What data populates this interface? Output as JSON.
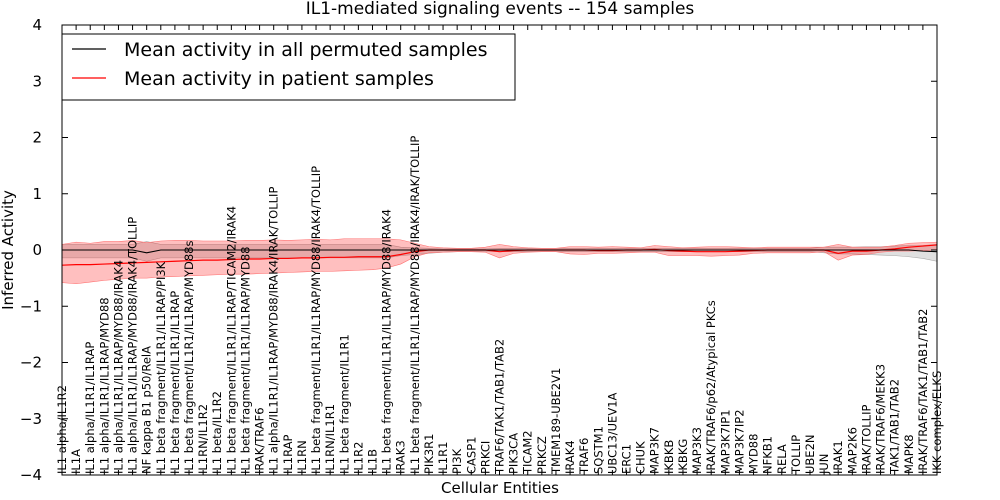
{
  "chart_data": {
    "type": "line",
    "title": "IL1-mediated signaling events -- 154 samples",
    "xlabel": "Cellular Entities",
    "ylabel": "Inferred Activity",
    "ylim": [
      -4,
      4
    ],
    "yticks": [
      -4,
      -3,
      -2,
      -1,
      0,
      1,
      2,
      3,
      4
    ],
    "ytick_labels": [
      "−4",
      "−3",
      "−2",
      "−1",
      "0",
      "1",
      "2",
      "3",
      "4"
    ],
    "grid": false,
    "legend_position": "top-left",
    "categories": [
      "IL1 alpha/IL1R2",
      "IL1A",
      "IL1 alpha/IL1R1/IL1RAP",
      "IL1 alpha/IL1R1/IL1RAP/MYD88",
      "IL1 alpha/IL1R1/IL1RAP/MYD88/IRAK4",
      "IL1 alpha/IL1R1/IL1RAP/MYD88/IRAK4/TOLLIP",
      "NF kappa B1 p50/RelA",
      "IL1 beta fragment/IL1R1/IL1RAP/PI3K",
      "IL1 beta fragment/IL1R1/IL1RAP",
      "IL1 beta fragment/IL1R1/IL1RAP/MYD88s",
      "IL1RN/IL1R2",
      "IL1 beta/IL1R2",
      "IL1 beta fragment/IL1R1/IL1RAP/TICAM2/IRAK4",
      "IL1 beta fragment/IL1R1/IL1RAP/MYD88",
      "IRAK/TRAF6",
      "IL1 alpha/IL1R1/IL1RAP/MYD88/IRAK4/IRAK/TOLLIP",
      "IL1RAP",
      "IL1RN",
      "IL1 beta fragment/IL1R1/IL1RAP/MYD88/IRAK4/TOLLIP",
      "IL1RN/IL1R1",
      "IL1 beta fragment/IL1R1",
      "IL1R2",
      "IL1B",
      "IL1 beta fragment/IL1R1/IL1RAP/MYD88/IRAK4",
      "IRAK3",
      "IL1 beta fragment/IL1R1/IL1RAP/MYD88/IRAK4/IRAK/TOLLIP",
      "PIK3R1",
      "IL1R1",
      "PI3K",
      "CASP1",
      "PRKCI",
      "TRAF6/TAK1/TAB1/TAB2",
      "PIK3CA",
      "TICAM2",
      "PRKCZ",
      "TMEM189-UBE2V1",
      "IRAK4",
      "TRAF6",
      "SQSTM1",
      "UBC13/UEV1A",
      "ERC1",
      "CHUK",
      "MAP3K7",
      "IKBKB",
      "IKBKG",
      "MAP3K3",
      "IRAK/TRAF6/p62/Atypical PKCs",
      "MAP3K7IP1",
      "MAP3K7IP2",
      "MYD88",
      "NFKB1",
      "RELA",
      "TOLLIP",
      "UBE2N",
      "JUN",
      "IRAK1",
      "MAP2K6",
      "IRAK/TOLLIP",
      "IRAK/TRAF6/MEKK3",
      "TAK1/TAB1/TAB2",
      "MAPK8",
      "IRAK/TRAF6/TAK1/TAB1/TAB2",
      "IKK complex/ELKS"
    ],
    "series": [
      {
        "name": "Mean activity in all permuted samples",
        "color": "#000000",
        "values": [
          0,
          0,
          0,
          0,
          0,
          0,
          -0.05,
          0,
          0,
          0,
          0,
          0,
          0,
          0,
          0,
          0,
          0,
          0,
          0,
          0,
          0,
          0,
          0,
          0,
          0,
          0,
          0,
          0,
          0,
          0,
          0,
          0,
          0,
          0,
          0,
          0,
          0,
          0,
          0,
          0,
          0,
          0,
          0,
          0,
          0,
          0,
          0,
          0,
          0,
          0,
          0,
          0,
          0,
          0,
          0,
          0,
          0,
          0,
          0,
          0,
          0,
          -0.02,
          -0.03
        ],
        "band": [
          [
            -0.14,
            0.1
          ],
          [
            -0.14,
            0.1
          ],
          [
            -0.14,
            0.1
          ],
          [
            -0.14,
            0.1
          ],
          [
            -0.14,
            0.1
          ],
          [
            -0.14,
            0.1
          ],
          [
            -0.2,
            0.15
          ],
          [
            -0.14,
            0.1
          ],
          [
            -0.14,
            0.1
          ],
          [
            -0.14,
            0.1
          ],
          [
            -0.14,
            0.1
          ],
          [
            -0.14,
            0.1
          ],
          [
            -0.14,
            0.1
          ],
          [
            -0.14,
            0.1
          ],
          [
            -0.14,
            0.1
          ],
          [
            -0.14,
            0.1
          ],
          [
            -0.14,
            0.1
          ],
          [
            -0.14,
            0.1
          ],
          [
            -0.14,
            0.1
          ],
          [
            -0.14,
            0.1
          ],
          [
            -0.14,
            0.1
          ],
          [
            -0.14,
            0.1
          ],
          [
            -0.14,
            0.1
          ],
          [
            -0.14,
            0.1
          ],
          [
            -0.1,
            0.05
          ],
          [
            -0.08,
            0.04
          ],
          [
            -0.06,
            0.03
          ],
          [
            -0.04,
            0.02
          ],
          [
            -0.03,
            0.02
          ],
          [
            -0.03,
            0.02
          ],
          [
            -0.02,
            0.02
          ],
          [
            -0.03,
            0.03
          ],
          [
            -0.03,
            0.03
          ],
          [
            -0.03,
            0.03
          ],
          [
            -0.03,
            0.03
          ],
          [
            -0.03,
            0.03
          ],
          [
            -0.03,
            0.03
          ],
          [
            -0.03,
            0.03
          ],
          [
            -0.03,
            0.03
          ],
          [
            -0.03,
            0.03
          ],
          [
            -0.03,
            0.03
          ],
          [
            -0.03,
            0.03
          ],
          [
            -0.03,
            0.03
          ],
          [
            -0.03,
            0.03
          ],
          [
            -0.03,
            0.03
          ],
          [
            -0.03,
            0.03
          ],
          [
            -0.03,
            0.03
          ],
          [
            -0.03,
            0.03
          ],
          [
            -0.03,
            0.03
          ],
          [
            -0.03,
            0.03
          ],
          [
            -0.03,
            0.03
          ],
          [
            -0.03,
            0.03
          ],
          [
            -0.03,
            0.03
          ],
          [
            -0.03,
            0.03
          ],
          [
            -0.05,
            0.05
          ],
          [
            -0.07,
            0.05
          ],
          [
            -0.07,
            0.05
          ],
          [
            -0.08,
            0.06
          ],
          [
            -0.09,
            0.06
          ],
          [
            -0.1,
            0.07
          ],
          [
            -0.12,
            0.08
          ],
          [
            -0.15,
            0.08
          ],
          [
            -0.2,
            0.1
          ]
        ]
      },
      {
        "name": "Mean activity in patient samples",
        "color": "#ff0000",
        "values": [
          -0.27,
          -0.26,
          -0.26,
          -0.25,
          -0.24,
          -0.23,
          -0.22,
          -0.21,
          -0.2,
          -0.19,
          -0.18,
          -0.18,
          -0.17,
          -0.16,
          -0.16,
          -0.15,
          -0.15,
          -0.14,
          -0.14,
          -0.13,
          -0.13,
          -0.12,
          -0.12,
          -0.12,
          -0.08,
          -0.03,
          0,
          0,
          0,
          0,
          0,
          -0.03,
          -0.01,
          0,
          0,
          0,
          0,
          0,
          -0.01,
          -0.01,
          0,
          0,
          0.01,
          -0.01,
          -0.02,
          -0.03,
          -0.03,
          -0.03,
          -0.02,
          -0.01,
          0,
          0,
          0,
          0,
          0,
          -0.06,
          -0.02,
          -0.02,
          0,
          0.02,
          0.05,
          0.07,
          0.09
        ],
        "band": [
          [
            -0.58,
            0.1
          ],
          [
            -0.6,
            0.14
          ],
          [
            -0.57,
            0.12
          ],
          [
            -0.54,
            0.15
          ],
          [
            -0.52,
            0.15
          ],
          [
            -0.5,
            0.17
          ],
          [
            -0.5,
            0.13
          ],
          [
            -0.48,
            0.16
          ],
          [
            -0.47,
            0.17
          ],
          [
            -0.46,
            0.17
          ],
          [
            -0.45,
            0.16
          ],
          [
            -0.44,
            0.16
          ],
          [
            -0.43,
            0.16
          ],
          [
            -0.43,
            0.17
          ],
          [
            -0.42,
            0.17
          ],
          [
            -0.41,
            0.18
          ],
          [
            -0.4,
            0.17
          ],
          [
            -0.39,
            0.18
          ],
          [
            -0.38,
            0.19
          ],
          [
            -0.38,
            0.18
          ],
          [
            -0.37,
            0.2
          ],
          [
            -0.36,
            0.2
          ],
          [
            -0.35,
            0.2
          ],
          [
            -0.32,
            0.2
          ],
          [
            -0.25,
            0.18
          ],
          [
            -0.12,
            0.12
          ],
          [
            -0.05,
            0.06
          ],
          [
            -0.04,
            0.04
          ],
          [
            -0.03,
            0.03
          ],
          [
            -0.03,
            0.03
          ],
          [
            -0.04,
            0.05
          ],
          [
            -0.14,
            0.1
          ],
          [
            -0.06,
            0.06
          ],
          [
            -0.04,
            0.04
          ],
          [
            -0.03,
            0.03
          ],
          [
            -0.03,
            0.03
          ],
          [
            -0.07,
            0.06
          ],
          [
            -0.08,
            0.06
          ],
          [
            -0.06,
            0.05
          ],
          [
            -0.06,
            0.06
          ],
          [
            -0.05,
            0.05
          ],
          [
            -0.04,
            0.04
          ],
          [
            -0.04,
            0.08
          ],
          [
            -0.1,
            0.06
          ],
          [
            -0.1,
            0.04
          ],
          [
            -0.1,
            0.05
          ],
          [
            -0.11,
            0.06
          ],
          [
            -0.1,
            0.06
          ],
          [
            -0.09,
            0.05
          ],
          [
            -0.06,
            0.04
          ],
          [
            -0.05,
            0.05
          ],
          [
            -0.05,
            0.05
          ],
          [
            -0.05,
            0.05
          ],
          [
            -0.05,
            0.05
          ],
          [
            -0.03,
            0.05
          ],
          [
            -0.18,
            0.1
          ],
          [
            -0.09,
            0.05
          ],
          [
            -0.08,
            0.05
          ],
          [
            -0.04,
            0.05
          ],
          [
            -0.02,
            0.08
          ],
          [
            -0.02,
            0.12
          ],
          [
            -0.01,
            0.13
          ],
          [
            0,
            0.14
          ]
        ]
      }
    ]
  }
}
